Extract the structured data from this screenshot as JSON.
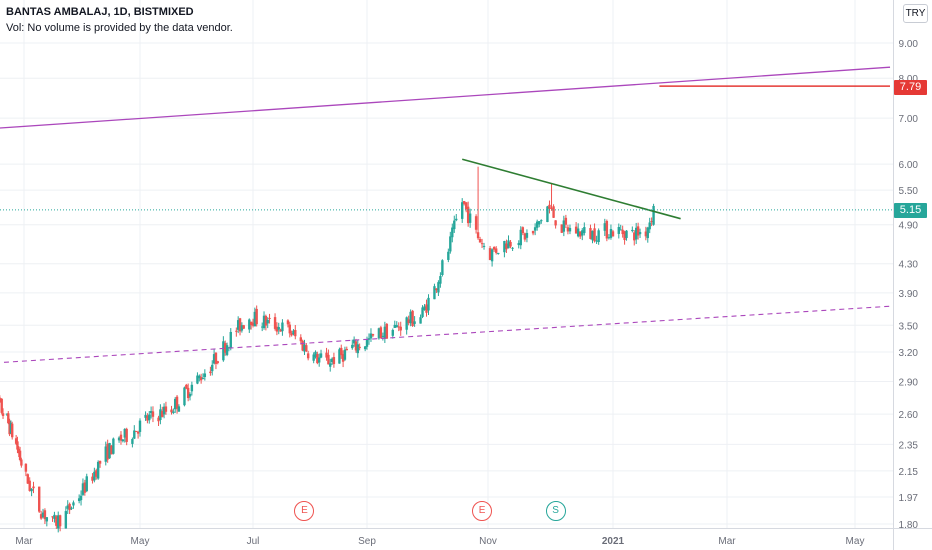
{
  "header": {
    "title": "BANTAS AMBALAJ, 1D, BISTMIXED",
    "volume_note": "Vol: No volume is provided by the data vendor."
  },
  "currency_button": "TRY",
  "price_tags": {
    "resistance_value": "7.79",
    "last_price": "5.15"
  },
  "events": [
    {
      "letter": "E",
      "kind": "earnings",
      "date": "2020-07-29"
    },
    {
      "letter": "E",
      "kind": "earnings",
      "date": "2020-10-29"
    },
    {
      "letter": "S",
      "kind": "split",
      "date": "2020-12-04"
    }
  ],
  "colors": {
    "up": "#26a69a",
    "down": "#ef5350",
    "resistance_trendline": "#2e7d32",
    "upper_channel": "#ab47bc",
    "lower_channel_dashed": "#ab47bc",
    "horizontal_level": "#e53935",
    "last_price_line": "#26a69a"
  },
  "chart_data": {
    "type": "candlestick",
    "title": "BANTAS AMBALAJ, 1D, BISTMIXED",
    "ylabel": "TRY",
    "y_scale": "log",
    "ylim": [
      1.78,
      10.0
    ],
    "grid": true,
    "x_ticks": [
      "Mar",
      "May",
      "Jul",
      "Sep",
      "Nov",
      "2021",
      "Mar",
      "May"
    ],
    "x_tick_dates": [
      "2020-03-01",
      "2020-05-01",
      "2020-07-01",
      "2020-09-01",
      "2020-11-01",
      "2021-01-01",
      "2021-03-01",
      "2021-05-01"
    ],
    "xlim": [
      "2020-02-01",
      "2021-05-20"
    ],
    "y_ticks": [
      9.0,
      8.0,
      7.0,
      6.0,
      5.5,
      4.9,
      4.3,
      3.9,
      3.5,
      3.2,
      2.9,
      2.6,
      2.35,
      2.15,
      1.97,
      1.8
    ],
    "last_price": 5.15,
    "series": [
      {
        "price_path": [
          [
            "2020-02-03",
            2.85
          ],
          [
            "2020-02-10",
            2.7
          ],
          [
            "2020-02-17",
            2.55
          ],
          [
            "2020-02-24",
            2.35
          ],
          [
            "2020-03-02",
            2.1
          ],
          [
            "2020-03-09",
            1.9
          ],
          [
            "2020-03-16",
            1.8
          ],
          [
            "2020-03-23",
            1.86
          ],
          [
            "2020-03-30",
            1.98
          ],
          [
            "2020-04-06",
            2.12
          ],
          [
            "2020-04-13",
            2.28
          ],
          [
            "2020-04-20",
            2.38
          ],
          [
            "2020-04-27",
            2.45
          ],
          [
            "2020-05-04",
            2.55
          ],
          [
            "2020-05-11",
            2.6
          ],
          [
            "2020-05-18",
            2.65
          ],
          [
            "2020-05-25",
            2.78
          ],
          [
            "2020-06-01",
            2.92
          ],
          [
            "2020-06-08",
            3.05
          ],
          [
            "2020-06-15",
            3.25
          ],
          [
            "2020-06-22",
            3.45
          ],
          [
            "2020-06-29",
            3.6
          ],
          [
            "2020-07-06",
            3.55
          ],
          [
            "2020-07-13",
            3.5
          ],
          [
            "2020-07-20",
            3.45
          ],
          [
            "2020-07-27",
            3.3
          ],
          [
            "2020-08-03",
            3.15
          ],
          [
            "2020-08-10",
            3.1
          ],
          [
            "2020-08-17",
            3.15
          ],
          [
            "2020-08-24",
            3.25
          ],
          [
            "2020-08-31",
            3.3
          ],
          [
            "2020-09-07",
            3.4
          ],
          [
            "2020-09-14",
            3.45
          ],
          [
            "2020-09-21",
            3.55
          ],
          [
            "2020-09-28",
            3.6
          ],
          [
            "2020-10-05",
            3.95
          ],
          [
            "2020-10-12",
            4.5
          ],
          [
            "2020-10-19",
            5.3
          ],
          [
            "2020-10-26",
            4.75
          ],
          [
            "2020-11-02",
            4.45
          ],
          [
            "2020-11-09",
            4.6
          ],
          [
            "2020-11-16",
            4.7
          ],
          [
            "2020-11-23",
            4.75
          ],
          [
            "2020-11-30",
            5.2
          ],
          [
            "2020-12-07",
            4.85
          ],
          [
            "2020-12-14",
            4.8
          ],
          [
            "2020-12-21",
            4.75
          ],
          [
            "2020-12-28",
            4.8
          ],
          [
            "2021-01-04",
            4.8
          ],
          [
            "2021-01-11",
            4.75
          ],
          [
            "2021-01-18",
            4.8
          ],
          [
            "2021-01-22",
            5.15
          ]
        ],
        "highs": [
          {
            "date": "2020-10-27",
            "value": 5.95
          },
          {
            "date": "2020-12-02",
            "value": 5.62
          }
        ]
      }
    ],
    "drawings": [
      {
        "kind": "resistance_trendline",
        "from": [
          "2020-10-19",
          6.1
        ],
        "to": [
          "2021-02-05",
          5.0
        ]
      },
      {
        "kind": "upper_channel_line",
        "from": [
          "2020-02-01",
          6.75
        ],
        "to": [
          "2021-05-20",
          8.3
        ]
      },
      {
        "kind": "lower_channel_dashed_line",
        "from": [
          "2020-02-01",
          3.08
        ],
        "to": [
          "2021-05-20",
          3.73
        ]
      },
      {
        "kind": "horizontal_ray",
        "from": [
          "2021-01-25",
          7.79
        ],
        "to": [
          "2021-05-20",
          7.79
        ]
      }
    ]
  }
}
